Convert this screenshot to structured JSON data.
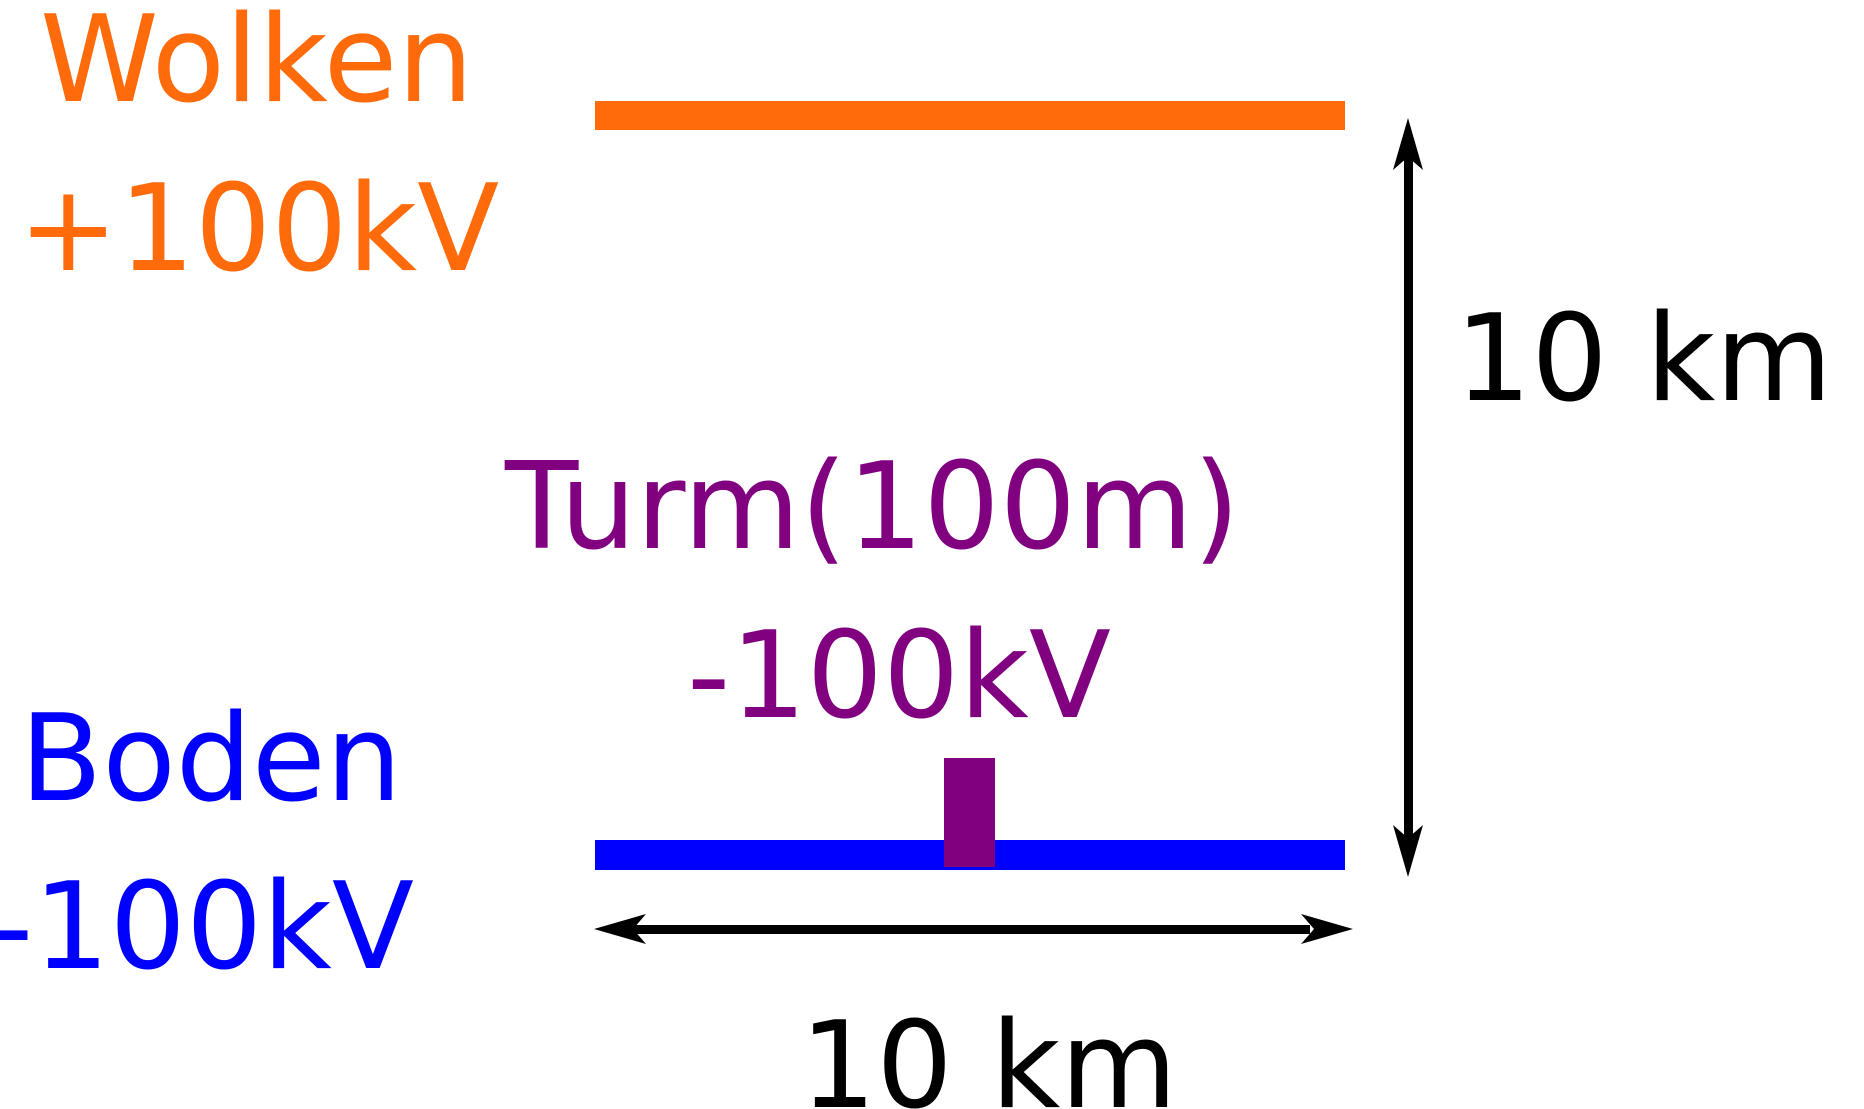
{
  "colors": {
    "cloud": "#ff6a0a",
    "ground": "#0000ff",
    "tower": "#800080",
    "dimension": "#000000",
    "background": "#ffffff"
  },
  "cloud": {
    "name": "Wolken",
    "voltage": "+100kV"
  },
  "ground": {
    "name": "Boden",
    "voltage": "-100kV"
  },
  "tower": {
    "name": "Turm(100m)",
    "voltage": "-100kV"
  },
  "dimensions": {
    "height": "10 km",
    "width": "10 km"
  }
}
